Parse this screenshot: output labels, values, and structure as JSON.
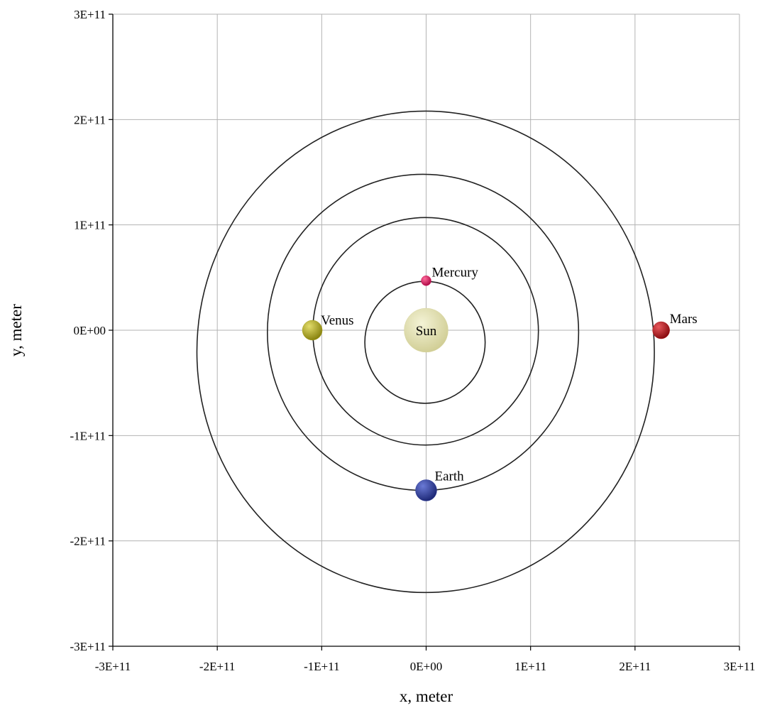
{
  "chart_data": {
    "type": "scatter",
    "xlabel": "x, meter",
    "ylabel": "y, meter",
    "xlim": [
      -300000000000.0,
      300000000000.0
    ],
    "ylim": [
      -300000000000.0,
      300000000000.0
    ],
    "grid": true,
    "x_ticks": [
      -300000000000.0,
      -200000000000.0,
      -100000000000.0,
      0,
      100000000000.0,
      200000000000.0,
      300000000000.0
    ],
    "y_ticks": [
      -300000000000.0,
      -200000000000.0,
      -100000000000.0,
      0,
      100000000000.0,
      200000000000.0,
      300000000000.0
    ],
    "x_tick_labels": [
      "-3E+11",
      "-2E+11",
      "-1E+11",
      "0E+00",
      "1E+11",
      "2E+11",
      "3E+11"
    ],
    "y_tick_labels": [
      "-3E+11",
      "-2E+11",
      "-1E+11",
      "0E+00",
      "1E+11",
      "2E+11",
      "3E+11"
    ],
    "orbits": [
      {
        "center_x": -1100000000.0,
        "center_y": -11500000000.0,
        "radius_x": 57600000000.0,
        "radius_y": 57900000000.0
      },
      {
        "center_x": -500000000.0,
        "center_y": -1000000000.0,
        "radius_x": 108000000000.0,
        "radius_y": 108000000000.0
      },
      {
        "center_x": -3000000000.0,
        "center_y": -2000000000.0,
        "radius_x": 149000000000.0,
        "radius_y": 150000000000.0
      },
      {
        "center_x": -500000000.0,
        "center_y": -20500000000.0,
        "radius_x": 219000000000.0,
        "radius_y": 228500000000.0
      }
    ],
    "bodies": [
      {
        "name": "Sun",
        "x": 0,
        "y": 0,
        "color": "#d8d6a0",
        "radius_px": 31
      },
      {
        "name": "Mercury",
        "x": 0,
        "y": 47000000000.0,
        "color": "#d0145a",
        "radius_px": 7
      },
      {
        "name": "Venus",
        "x": -109000000000.0,
        "y": 0,
        "color": "#a8a21a",
        "radius_px": 14
      },
      {
        "name": "Earth",
        "x": 0,
        "y": -152000000000.0,
        "color": "#2e3c9a",
        "radius_px": 15
      },
      {
        "name": "Mars",
        "x": 225000000000.0,
        "y": 0,
        "color": "#b0141a",
        "radius_px": 12
      }
    ],
    "grid_color": "#b3b3b3",
    "orbit_color": "#222222"
  }
}
